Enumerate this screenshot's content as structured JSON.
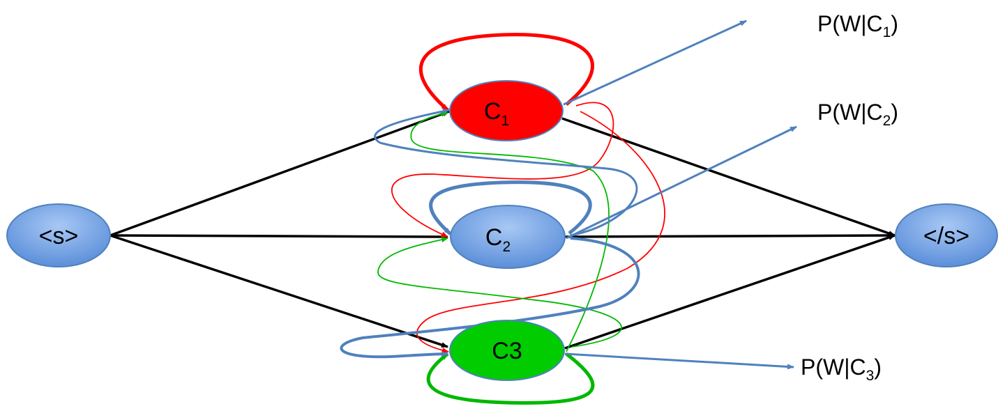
{
  "diagram": {
    "nodes": [
      {
        "id": "start",
        "label": "<s>",
        "sub": "",
        "fill": "#6d9eeb"
      },
      {
        "id": "c1",
        "label": "C",
        "sub": "1",
        "fill": "#ff0000"
      },
      {
        "id": "c2",
        "label": "C",
        "sub": "2",
        "fill": "#6d9eeb"
      },
      {
        "id": "c3",
        "label": "C3",
        "sub": "",
        "fill": "#00cc00"
      },
      {
        "id": "end",
        "label": "</s>",
        "sub": "",
        "fill": "#6d9eeb"
      }
    ],
    "emissions": [
      {
        "from": "c1",
        "prefix": "P(W|C",
        "sub": "1",
        "suffix": ")"
      },
      {
        "from": "c2",
        "prefix": "P(W|C",
        "sub": "2",
        "suffix": ")"
      },
      {
        "from": "c3",
        "prefix": "P(W|C",
        "sub": "3",
        "suffix": ")"
      }
    ],
    "colors": {
      "black": "#000000",
      "red": "#ff0000",
      "green": "#00b800",
      "blue": "#4f81bd",
      "node_blue": "#6d9eeb"
    }
  }
}
